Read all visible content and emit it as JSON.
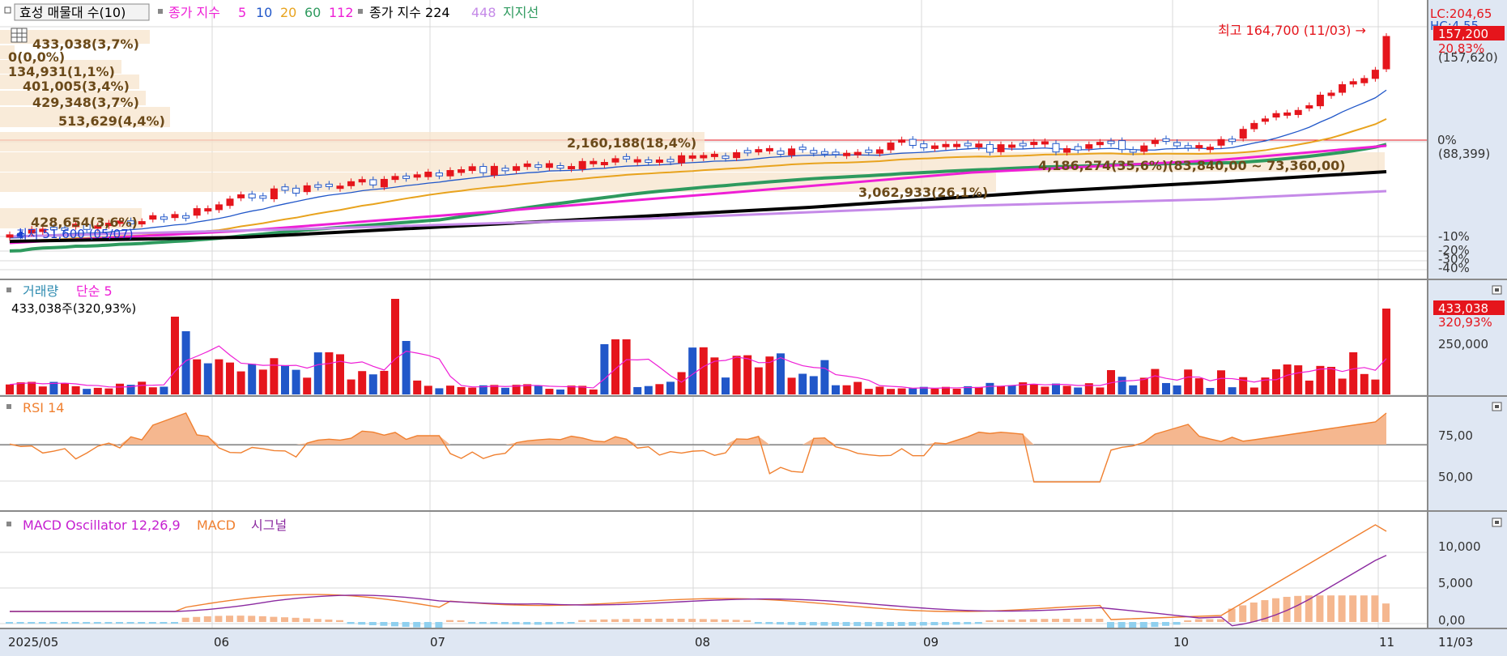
{
  "price_panel": {
    "title": "효성 매물대 수(10)",
    "ma_label": "종가 지수",
    "ma_periods": [
      "5",
      "10",
      "20",
      "60",
      "112"
    ],
    "ma_long_label": "종가 지수 224",
    "ma_long2": "448",
    "support_label": "지지선",
    "high_annotation": "최고 164,700 (11/03) →",
    "low_annotation": "최저 51,600 (05/07)",
    "right_axis": {
      "lc": "LC:204,65",
      "hc": "HC:4,55",
      "price_badge": "157,200",
      "price_pct": "20,83%",
      "price_prev": "(157,620)",
      "zero_pct": "0%",
      "zero_value": "(88,399)",
      "tick_m10": "-10%",
      "tick_m20": "-20%",
      "tick_m30": "-30%",
      "tick_m40": "-40%"
    },
    "volume_profile": [
      {
        "label": "433,038(3,7%)"
      },
      {
        "label": "0(0,0%)"
      },
      {
        "label": "134,931(1,1%)"
      },
      {
        "label": "401,005(3,4%)"
      },
      {
        "label": "429,348(3,7%)"
      },
      {
        "label": "513,629(4,4%)"
      },
      {
        "label": "2,160,188(18,4%)"
      },
      {
        "label": "4,186,274(35,6%)(83,840,00 ~ 73,360,00)"
      },
      {
        "label": "3,062,933(26,1%)"
      },
      {
        "label": "428,654(3,6%)"
      }
    ]
  },
  "volume_panel": {
    "title": "거래량",
    "ma_label": "단순 5",
    "info": "433,038주(320,93%)",
    "badge": "433,038",
    "pct": "320,93%",
    "tick": "250,000"
  },
  "rsi_panel": {
    "title": "RSI 14",
    "tick_hi": "75,00",
    "tick_lo": "50,00"
  },
  "macd_panel": {
    "title": "MACD Oscillator 12,26,9",
    "macd_label": "MACD",
    "signal_label": "시그널",
    "ticks": [
      "10,000",
      "5,000",
      "0,00"
    ]
  },
  "x_axis": {
    "labels": [
      "2025/05",
      "06",
      "07",
      "08",
      "09",
      "10",
      "11"
    ],
    "current": "11/03"
  },
  "colors": {
    "up": "#e5151c",
    "down": "#2157c9",
    "ma5": "#2157c9",
    "ma20": "#e8a31e",
    "ma60": "#2e9a5e",
    "ma112": "#ee1fd6",
    "ma224": "#000000",
    "ma448": "#c58ae8",
    "rsi": "#f08030",
    "macd_line": "#f08030",
    "signal": "#8b2aa0",
    "axis_bg": "#dfe7f3"
  },
  "chart_data": {
    "type": "candlestick",
    "x_range": [
      "2025-05-07",
      "2025-11-03"
    ],
    "y_high": 164700,
    "y_low": 51600,
    "last_close": 157200,
    "last_volume": 433038,
    "volume_profile_values": [
      433038,
      0,
      134931,
      401005,
      429348,
      513629,
      2160188,
      4186274,
      3062933,
      428654
    ],
    "rsi_period": 14,
    "macd": [
      12,
      26,
      9
    ]
  }
}
